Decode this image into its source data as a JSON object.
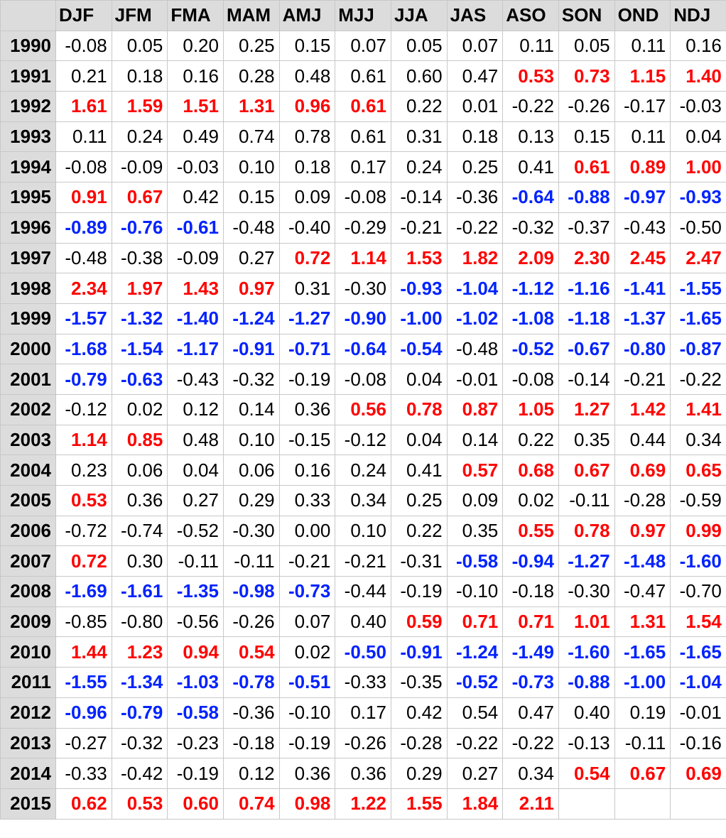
{
  "chart_data": {
    "type": "table",
    "columns": [
      "DJF",
      "JFM",
      "FMA",
      "MAM",
      "AMJ",
      "MJJ",
      "JJA",
      "JAS",
      "ASO",
      "SON",
      "OND",
      "NDJ"
    ],
    "colors": {
      "warm": "#ff0000",
      "cold": "#0022ff",
      "neutral": "#000000",
      "header_bg": "#dcdcdc"
    },
    "rows": [
      {
        "year": "1990",
        "values": [
          "-0.08",
          "0.05",
          "0.20",
          "0.25",
          "0.15",
          "0.07",
          "0.05",
          "0.07",
          "0.11",
          "0.05",
          "0.11",
          "0.16"
        ]
      },
      {
        "year": "1991",
        "values": [
          "0.21",
          "0.18",
          "0.16",
          "0.28",
          "0.48",
          "0.61",
          "0.60",
          "0.47",
          "0.53",
          "0.73",
          "1.15",
          "1.40"
        ],
        "phase": [
          "n",
          "n",
          "n",
          "n",
          "n",
          "n",
          "n",
          "n",
          "w",
          "w",
          "w",
          "w"
        ]
      },
      {
        "year": "1992",
        "values": [
          "1.61",
          "1.59",
          "1.51",
          "1.31",
          "0.96",
          "0.61",
          "0.22",
          "0.01",
          "-0.22",
          "-0.26",
          "-0.17",
          "-0.03"
        ],
        "phase": [
          "w",
          "w",
          "w",
          "w",
          "w",
          "w",
          "n",
          "n",
          "n",
          "n",
          "n",
          "n"
        ]
      },
      {
        "year": "1993",
        "values": [
          "0.11",
          "0.24",
          "0.49",
          "0.74",
          "0.78",
          "0.61",
          "0.31",
          "0.18",
          "0.13",
          "0.15",
          "0.11",
          "0.04"
        ]
      },
      {
        "year": "1994",
        "values": [
          "-0.08",
          "-0.09",
          "-0.03",
          "0.10",
          "0.18",
          "0.17",
          "0.24",
          "0.25",
          "0.41",
          "0.61",
          "0.89",
          "1.00"
        ],
        "phase": [
          "n",
          "n",
          "n",
          "n",
          "n",
          "n",
          "n",
          "n",
          "n",
          "w",
          "w",
          "w"
        ]
      },
      {
        "year": "1995",
        "values": [
          "0.91",
          "0.67",
          "0.42",
          "0.15",
          "0.09",
          "-0.08",
          "-0.14",
          "-0.36",
          "-0.64",
          "-0.88",
          "-0.97",
          "-0.93"
        ],
        "phase": [
          "w",
          "w",
          "n",
          "n",
          "n",
          "n",
          "n",
          "n",
          "c",
          "c",
          "c",
          "c"
        ]
      },
      {
        "year": "1996",
        "values": [
          "-0.89",
          "-0.76",
          "-0.61",
          "-0.48",
          "-0.40",
          "-0.29",
          "-0.21",
          "-0.22",
          "-0.32",
          "-0.37",
          "-0.43",
          "-0.50"
        ],
        "phase": [
          "c",
          "c",
          "c",
          "n",
          "n",
          "n",
          "n",
          "n",
          "n",
          "n",
          "n",
          "n"
        ]
      },
      {
        "year": "1997",
        "values": [
          "-0.48",
          "-0.38",
          "-0.09",
          "0.27",
          "0.72",
          "1.14",
          "1.53",
          "1.82",
          "2.09",
          "2.30",
          "2.45",
          "2.47"
        ],
        "phase": [
          "n",
          "n",
          "n",
          "n",
          "w",
          "w",
          "w",
          "w",
          "w",
          "w",
          "w",
          "w"
        ]
      },
      {
        "year": "1998",
        "values": [
          "2.34",
          "1.97",
          "1.43",
          "0.97",
          "0.31",
          "-0.30",
          "-0.93",
          "-1.04",
          "-1.12",
          "-1.16",
          "-1.41",
          "-1.55"
        ],
        "phase": [
          "w",
          "w",
          "w",
          "w",
          "n",
          "n",
          "c",
          "c",
          "c",
          "c",
          "c",
          "c"
        ]
      },
      {
        "year": "1999",
        "values": [
          "-1.57",
          "-1.32",
          "-1.40",
          "-1.24",
          "-1.27",
          "-0.90",
          "-1.00",
          "-1.02",
          "-1.08",
          "-1.18",
          "-1.37",
          "-1.65"
        ],
        "phase": [
          "c",
          "c",
          "c",
          "c",
          "c",
          "c",
          "c",
          "c",
          "c",
          "c",
          "c",
          "c"
        ]
      },
      {
        "year": "2000",
        "values": [
          "-1.68",
          "-1.54",
          "-1.17",
          "-0.91",
          "-0.71",
          "-0.64",
          "-0.54",
          "-0.48",
          "-0.52",
          "-0.67",
          "-0.80",
          "-0.87"
        ],
        "phase": [
          "c",
          "c",
          "c",
          "c",
          "c",
          "c",
          "c",
          "n",
          "c",
          "c",
          "c",
          "c"
        ]
      },
      {
        "year": "2001",
        "values": [
          "-0.79",
          "-0.63",
          "-0.43",
          "-0.32",
          "-0.19",
          "-0.08",
          "0.04",
          "-0.01",
          "-0.08",
          "-0.14",
          "-0.21",
          "-0.22"
        ],
        "phase": [
          "c",
          "c",
          "n",
          "n",
          "n",
          "n",
          "n",
          "n",
          "n",
          "n",
          "n",
          "n"
        ]
      },
      {
        "year": "2002",
        "values": [
          "-0.12",
          "0.02",
          "0.12",
          "0.14",
          "0.36",
          "0.56",
          "0.78",
          "0.87",
          "1.05",
          "1.27",
          "1.42",
          "1.41"
        ],
        "phase": [
          "n",
          "n",
          "n",
          "n",
          "n",
          "w",
          "w",
          "w",
          "w",
          "w",
          "w",
          "w"
        ]
      },
      {
        "year": "2003",
        "values": [
          "1.14",
          "0.85",
          "0.48",
          "0.10",
          "-0.15",
          "-0.12",
          "0.04",
          "0.14",
          "0.22",
          "0.35",
          "0.44",
          "0.34"
        ],
        "phase": [
          "w",
          "w",
          "n",
          "n",
          "n",
          "n",
          "n",
          "n",
          "n",
          "n",
          "n",
          "n"
        ]
      },
      {
        "year": "2004",
        "values": [
          "0.23",
          "0.06",
          "0.04",
          "0.06",
          "0.16",
          "0.24",
          "0.41",
          "0.57",
          "0.68",
          "0.67",
          "0.69",
          "0.65"
        ],
        "phase": [
          "n",
          "n",
          "n",
          "n",
          "n",
          "n",
          "n",
          "w",
          "w",
          "w",
          "w",
          "w"
        ]
      },
      {
        "year": "2005",
        "values": [
          "0.53",
          "0.36",
          "0.27",
          "0.29",
          "0.33",
          "0.34",
          "0.25",
          "0.09",
          "0.02",
          "-0.11",
          "-0.28",
          "-0.59"
        ],
        "phase": [
          "w",
          "n",
          "n",
          "n",
          "n",
          "n",
          "n",
          "n",
          "n",
          "n",
          "n",
          "n"
        ]
      },
      {
        "year": "2006",
        "values": [
          "-0.72",
          "-0.74",
          "-0.52",
          "-0.30",
          "0.00",
          "0.10",
          "0.22",
          "0.35",
          "0.55",
          "0.78",
          "0.97",
          "0.99"
        ],
        "phase": [
          "n",
          "n",
          "n",
          "n",
          "n",
          "n",
          "n",
          "n",
          "w",
          "w",
          "w",
          "w"
        ]
      },
      {
        "year": "2007",
        "values": [
          "0.72",
          "0.30",
          "-0.11",
          "-0.11",
          "-0.21",
          "-0.21",
          "-0.31",
          "-0.58",
          "-0.94",
          "-1.27",
          "-1.48",
          "-1.60"
        ],
        "phase": [
          "w",
          "n",
          "n",
          "n",
          "n",
          "n",
          "n",
          "c",
          "c",
          "c",
          "c",
          "c"
        ]
      },
      {
        "year": "2008",
        "values": [
          "-1.69",
          "-1.61",
          "-1.35",
          "-0.98",
          "-0.73",
          "-0.44",
          "-0.19",
          "-0.10",
          "-0.18",
          "-0.30",
          "-0.47",
          "-0.70"
        ],
        "phase": [
          "c",
          "c",
          "c",
          "c",
          "c",
          "n",
          "n",
          "n",
          "n",
          "n",
          "n",
          "n"
        ]
      },
      {
        "year": "2009",
        "values": [
          "-0.85",
          "-0.80",
          "-0.56",
          "-0.26",
          "0.07",
          "0.40",
          "0.59",
          "0.71",
          "0.71",
          "1.01",
          "1.31",
          "1.54"
        ],
        "phase": [
          "n",
          "n",
          "n",
          "n",
          "n",
          "n",
          "w",
          "w",
          "w",
          "w",
          "w",
          "w"
        ]
      },
      {
        "year": "2010",
        "values": [
          "1.44",
          "1.23",
          "0.94",
          "0.54",
          "0.02",
          "-0.50",
          "-0.91",
          "-1.24",
          "-1.49",
          "-1.60",
          "-1.65",
          "-1.65"
        ],
        "phase": [
          "w",
          "w",
          "w",
          "w",
          "n",
          "c",
          "c",
          "c",
          "c",
          "c",
          "c",
          "c"
        ]
      },
      {
        "year": "2011",
        "values": [
          "-1.55",
          "-1.34",
          "-1.03",
          "-0.78",
          "-0.51",
          "-0.33",
          "-0.35",
          "-0.52",
          "-0.73",
          "-0.88",
          "-1.00",
          "-1.04"
        ],
        "phase": [
          "c",
          "c",
          "c",
          "c",
          "c",
          "n",
          "n",
          "c",
          "c",
          "c",
          "c",
          "c"
        ]
      },
      {
        "year": "2012",
        "values": [
          "-0.96",
          "-0.79",
          "-0.58",
          "-0.36",
          "-0.10",
          "0.17",
          "0.42",
          "0.54",
          "0.47",
          "0.40",
          "0.19",
          "-0.01"
        ],
        "phase": [
          "c",
          "c",
          "c",
          "n",
          "n",
          "n",
          "n",
          "n",
          "n",
          "n",
          "n",
          "n"
        ]
      },
      {
        "year": "2013",
        "values": [
          "-0.27",
          "-0.32",
          "-0.23",
          "-0.18",
          "-0.19",
          "-0.26",
          "-0.28",
          "-0.22",
          "-0.22",
          "-0.13",
          "-0.11",
          "-0.16"
        ]
      },
      {
        "year": "2014",
        "values": [
          "-0.33",
          "-0.42",
          "-0.19",
          "0.12",
          "0.36",
          "0.36",
          "0.29",
          "0.27",
          "0.34",
          "0.54",
          "0.67",
          "0.69"
        ],
        "phase": [
          "n",
          "n",
          "n",
          "n",
          "n",
          "n",
          "n",
          "n",
          "n",
          "w",
          "w",
          "w"
        ]
      },
      {
        "year": "2015",
        "values": [
          "0.62",
          "0.53",
          "0.60",
          "0.74",
          "0.98",
          "1.22",
          "1.55",
          "1.84",
          "2.11",
          "",
          "",
          ""
        ],
        "phase": [
          "w",
          "w",
          "w",
          "w",
          "w",
          "w",
          "w",
          "w",
          "w",
          "n",
          "n",
          "n"
        ]
      }
    ]
  }
}
